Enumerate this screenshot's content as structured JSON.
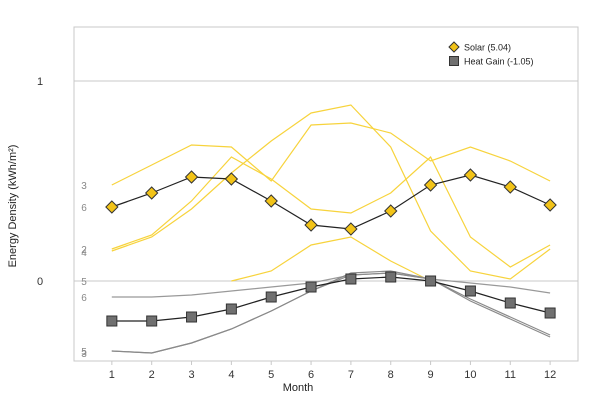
{
  "chart_data": {
    "type": "line",
    "xlabel": "Month",
    "ylabel": "Energy Density (kWh/m²)",
    "x": [
      1,
      2,
      3,
      4,
      5,
      6,
      7,
      8,
      9,
      10,
      11,
      12
    ],
    "xlim": [
      0.05,
      12.7
    ],
    "ylim": [
      -0.4,
      1.27
    ],
    "y_ticks": [
      0,
      1
    ],
    "grid": true,
    "legend_position": "top-right",
    "series": [
      {
        "name": "Solar (5.04)",
        "color": "#f2c318",
        "marker": "diamond",
        "values": [
          0.37,
          0.44,
          0.52,
          0.51,
          0.4,
          0.28,
          0.26,
          0.35,
          0.48,
          0.53,
          0.47,
          0.38
        ]
      },
      {
        "name": "Heat Gain (-1.05)",
        "color": "#707070",
        "marker": "square",
        "values": [
          -0.2,
          -0.2,
          -0.18,
          -0.14,
          -0.08,
          -0.03,
          0.01,
          0.02,
          0.0,
          -0.05,
          -0.11,
          -0.16
        ]
      }
    ],
    "background_series": [
      {
        "color": "#f7d33c",
        "values": [
          0.48,
          0.58,
          0.68,
          0.67,
          0.5,
          0.78,
          0.79,
          0.74,
          0.6,
          0.67,
          0.6,
          0.5
        ]
      },
      {
        "color": "#f7d33c",
        "values": [
          0.15,
          0.22,
          0.36,
          0.54,
          0.7,
          0.84,
          0.88,
          0.67,
          0.25,
          0.05,
          0.01,
          0.16
        ]
      },
      {
        "color": "#f7d33c",
        "values": [
          0.16,
          0.23,
          0.4,
          0.62,
          0.51,
          0.36,
          0.34,
          0.44,
          0.62,
          0.22,
          0.07,
          0.18
        ]
      },
      {
        "color": "#f7d33c",
        "values": [
          null,
          null,
          null,
          0.0,
          0.05,
          0.18,
          0.22,
          0.1,
          0.0,
          null,
          null,
          null
        ]
      },
      {
        "color": "#999999",
        "values": [
          -0.08,
          -0.08,
          -0.07,
          -0.05,
          -0.03,
          -0.01,
          0.03,
          0.04,
          0.01,
          -0.01,
          -0.03,
          -0.06
        ]
      },
      {
        "color": "#8a8a8a",
        "values": [
          -0.35,
          -0.36,
          -0.31,
          -0.24,
          -0.15,
          -0.05,
          0.04,
          0.05,
          0.01,
          -0.1,
          -0.19,
          -0.28
        ]
      },
      {
        "color": "#8a8a8a",
        "values": [
          -0.35,
          -0.36,
          -0.31,
          -0.24,
          -0.15,
          -0.05,
          0.03,
          0.04,
          0.01,
          -0.09,
          -0.18,
          -0.27
        ]
      }
    ],
    "side_labels": [
      {
        "text": "3",
        "y": 0.48
      },
      {
        "text": "6",
        "y": 0.37
      },
      {
        "text": "2",
        "y": 0.16
      },
      {
        "text": "4",
        "y": 0.145
      },
      {
        "text": "5",
        "y": 0.0
      },
      {
        "text": "6",
        "y": -0.08
      },
      {
        "text": "5",
        "y": -0.35
      },
      {
        "text": "3",
        "y": -0.36
      }
    ]
  }
}
